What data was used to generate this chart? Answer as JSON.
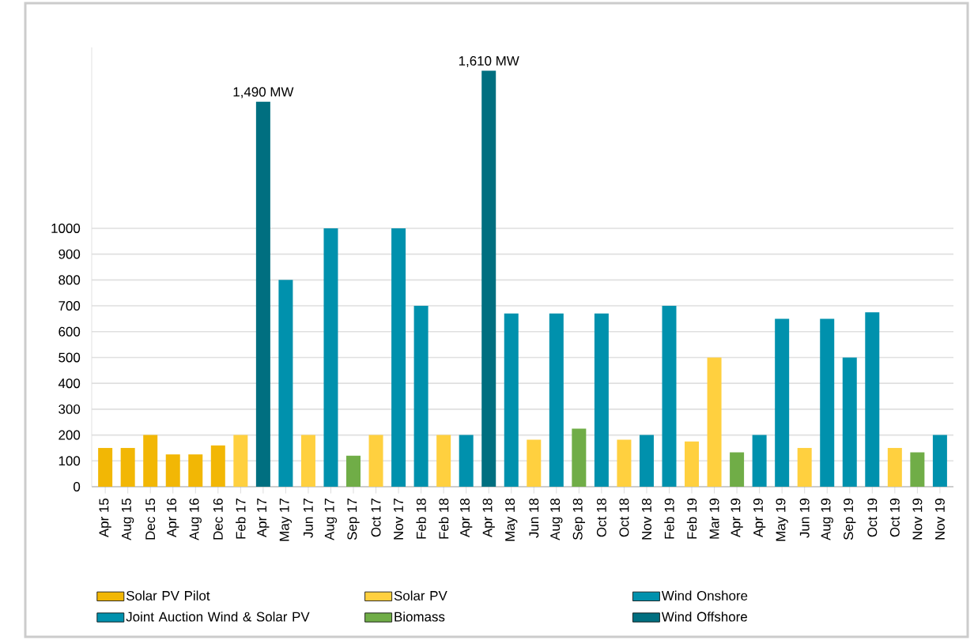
{
  "chart_data": {
    "type": "bar",
    "categories": [
      "Apr 15",
      "Aug 15",
      "Dec 15",
      "Apr 16",
      "Aug 16",
      "Dec 16",
      "Feb 17",
      "Apr 17",
      "May 17",
      "Jun 17",
      "Aug 17",
      "Sep 17",
      "Oct 17",
      "Nov 17",
      "Feb 18",
      "Feb 18",
      "Apr 18",
      "Apr 18",
      "May 18",
      "Jun 18",
      "Aug 18",
      "Sep 18",
      "Oct 18",
      "Oct 18",
      "Nov 18",
      "Feb 19",
      "Feb 19",
      "Mar 19",
      "Apr 19",
      "Apr 19",
      "May 19",
      "Jun 19",
      "Aug 19",
      "Sep 19",
      "Oct 19",
      "Oct 19",
      "Nov 19",
      "Nov 19"
    ],
    "series": [
      {
        "name": "Solar PV Pilot",
        "color": "#f2b705",
        "values": [
          150,
          150,
          200,
          125,
          125,
          160,
          null,
          null,
          null,
          null,
          null,
          null,
          null,
          null,
          null,
          null,
          null,
          null,
          null,
          null,
          null,
          null,
          null,
          null,
          null,
          null,
          null,
          null,
          null,
          null,
          null,
          null,
          null,
          null,
          null,
          null,
          null,
          null
        ]
      },
      {
        "name": "Solar PV",
        "color": "#ffd03f",
        "values": [
          null,
          null,
          null,
          null,
          null,
          null,
          200,
          null,
          null,
          200,
          null,
          null,
          200,
          null,
          null,
          200,
          null,
          null,
          null,
          182,
          null,
          null,
          null,
          182,
          null,
          null,
          175,
          500,
          null,
          null,
          null,
          150,
          null,
          null,
          null,
          150,
          null,
          null
        ]
      },
      {
        "name": "Wind Onshore",
        "color": "#0091ad",
        "values": [
          null,
          null,
          null,
          null,
          null,
          null,
          null,
          null,
          800,
          null,
          1000,
          null,
          null,
          1000,
          700,
          null,
          null,
          null,
          670,
          null,
          670,
          null,
          670,
          null,
          null,
          700,
          null,
          null,
          null,
          null,
          650,
          null,
          650,
          500,
          675,
          null,
          null,
          null
        ]
      },
      {
        "name": "Joint Auction Wind & Solar PV",
        "color": "#0091ad",
        "values": [
          null,
          null,
          null,
          null,
          null,
          null,
          null,
          null,
          null,
          null,
          null,
          null,
          null,
          null,
          null,
          null,
          200,
          null,
          null,
          null,
          null,
          null,
          null,
          null,
          200,
          null,
          null,
          null,
          null,
          200,
          null,
          null,
          null,
          null,
          null,
          null,
          null,
          200
        ]
      },
      {
        "name": "Biomass",
        "color": "#70ad47",
        "values": [
          null,
          null,
          null,
          null,
          null,
          null,
          null,
          null,
          null,
          null,
          null,
          120,
          null,
          null,
          null,
          null,
          null,
          null,
          null,
          null,
          null,
          225,
          null,
          null,
          null,
          null,
          null,
          null,
          133,
          null,
          null,
          null,
          null,
          null,
          null,
          null,
          133,
          null
        ]
      },
      {
        "name": "Wind Offshore",
        "color": "#006f80",
        "values": [
          null,
          null,
          null,
          null,
          null,
          null,
          null,
          1490,
          null,
          null,
          null,
          null,
          null,
          null,
          null,
          null,
          null,
          1610,
          null,
          null,
          null,
          null,
          null,
          null,
          null,
          null,
          null,
          null,
          null,
          null,
          null,
          null,
          null,
          null,
          null,
          null,
          null,
          null
        ],
        "value_labels": [
          null,
          null,
          null,
          null,
          null,
          null,
          null,
          "1,490 MW",
          null,
          null,
          null,
          null,
          null,
          null,
          null,
          null,
          null,
          "1,610 MW",
          null,
          null,
          null,
          null,
          null,
          null,
          null,
          null,
          null,
          null,
          null,
          null,
          null,
          null,
          null,
          null,
          null,
          null,
          null,
          null
        ]
      }
    ],
    "ylim": [
      0,
      1700
    ],
    "yticks": [
      0,
      100,
      200,
      300,
      400,
      500,
      600,
      700,
      800,
      900,
      1000
    ],
    "grid": "y",
    "legend": "bottom"
  }
}
